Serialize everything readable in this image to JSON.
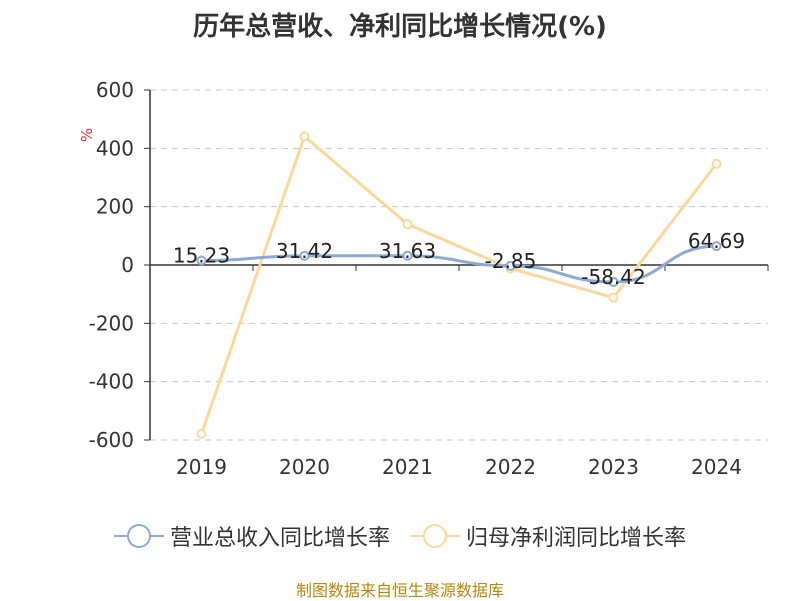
{
  "chart_data": {
    "type": "line",
    "title": "历年总营收、净利同比增长情况(%)",
    "ylabel": "%",
    "categories": [
      "2019",
      "2020",
      "2021",
      "2022",
      "2023",
      "2024"
    ],
    "yticks": [
      "600",
      "400",
      "200",
      "0",
      "-200",
      "-400",
      "-600"
    ],
    "ylim": [
      -600,
      600
    ],
    "grid": true,
    "legend_position": "bottom",
    "series": [
      {
        "name": "营业总收入同比增长率",
        "values": [
          15.23,
          31.42,
          31.63,
          -2.85,
          -58.42,
          64.69
        ],
        "labels": [
          "15.23",
          "31.42",
          "31.63",
          "-2.85",
          "-58.42",
          "64.69"
        ],
        "color": "#8fa9d6"
      },
      {
        "name": "归母净利润同比增长率",
        "values": [
          -579,
          441,
          140,
          -12,
          -112,
          347
        ],
        "color": "#fbd89a"
      }
    ]
  },
  "source": "制图数据来自恒生聚源数据库"
}
